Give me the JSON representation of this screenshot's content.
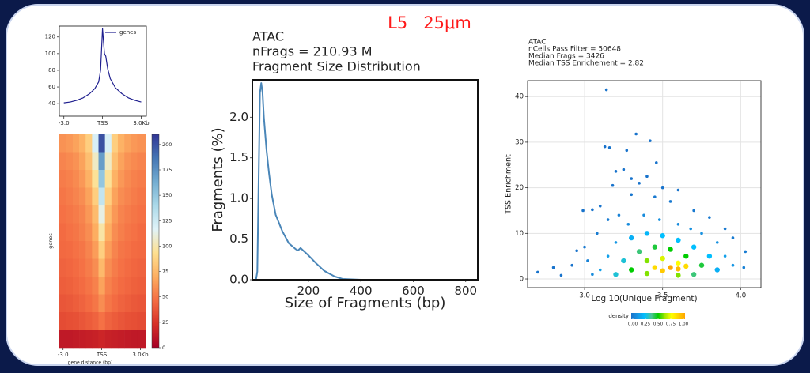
{
  "title": "L5   25μm",
  "chart_data": [
    {
      "type": "line",
      "series": [
        {
          "name": "genes",
          "color": "#1f1f8f",
          "x": [
            -3,
            -2.5,
            -2,
            -1.5,
            -1,
            -0.6,
            -0.3,
            -0.15,
            0,
            0.15,
            0.25,
            0.4,
            0.6,
            1,
            1.5,
            2,
            2.5,
            3
          ],
          "values": [
            41,
            42,
            44,
            47,
            52,
            58,
            66,
            80,
            130,
            100,
            97,
            82,
            70,
            59,
            52,
            47,
            44,
            42
          ]
        }
      ],
      "xlim": [
        -3.35,
        3.4
      ],
      "ylim": [
        25,
        133
      ],
      "xticks": [
        {
          "value": -3,
          "label": "-3.0"
        },
        {
          "value": 0,
          "label": "TSS"
        },
        {
          "value": 3,
          "label": "3.0Kb"
        }
      ],
      "yticks": [
        40,
        60,
        80,
        100,
        120
      ],
      "legend": "upper right"
    },
    {
      "type": "heatmap",
      "ylabel": "genes",
      "xlabel": "gene distance (bp)",
      "x": [
        -3,
        -2.5,
        -2,
        -1.5,
        -1,
        -0.5,
        0,
        0.5,
        1,
        1.5,
        2,
        2.5,
        3
      ],
      "z": [
        [
          60,
          62,
          66,
          72,
          85,
          120,
          200,
          120,
          85,
          72,
          66,
          62,
          60
        ],
        [
          55,
          57,
          60,
          66,
          78,
          105,
          170,
          105,
          78,
          66,
          60,
          57,
          55
        ],
        [
          52,
          54,
          57,
          62,
          72,
          95,
          150,
          95,
          72,
          62,
          57,
          54,
          52
        ],
        [
          50,
          52,
          55,
          58,
          66,
          85,
          130,
          85,
          66,
          58,
          55,
          52,
          50
        ],
        [
          48,
          50,
          52,
          55,
          62,
          76,
          112,
          76,
          62,
          55,
          52,
          50,
          48
        ],
        [
          46,
          48,
          50,
          53,
          58,
          70,
          98,
          70,
          58,
          53,
          50,
          48,
          46
        ],
        [
          45,
          46,
          48,
          50,
          55,
          64,
          85,
          64,
          55,
          50,
          48,
          46,
          45
        ],
        [
          43,
          44,
          46,
          48,
          52,
          58,
          75,
          58,
          52,
          48,
          46,
          44,
          43
        ],
        [
          41,
          42,
          44,
          46,
          49,
          54,
          66,
          54,
          49,
          46,
          44,
          42,
          41
        ],
        [
          38,
          39,
          41,
          43,
          46,
          50,
          58,
          50,
          46,
          43,
          41,
          39,
          38
        ],
        [
          34,
          35,
          36,
          38,
          40,
          43,
          48,
          43,
          40,
          38,
          36,
          35,
          34
        ],
        [
          12,
          12,
          13,
          14,
          15,
          16,
          18,
          16,
          15,
          14,
          13,
          12,
          12
        ]
      ],
      "xlim": [
        -3.35,
        3.4
      ],
      "xticks": [
        {
          "value": -3,
          "label": "-3.0"
        },
        {
          "value": 0,
          "label": "TSS"
        },
        {
          "value": 3,
          "label": "3.0Kb"
        }
      ],
      "colormap": [
        "#a50026",
        "#d73027",
        "#f46d43",
        "#fdae61",
        "#fee090",
        "#e0f3f8",
        "#abd9e9",
        "#74add1",
        "#4575b4",
        "#313695"
      ],
      "zlim": [
        0,
        210
      ],
      "zticks": [
        0,
        25,
        50,
        75,
        100,
        125,
        150,
        175,
        200
      ]
    },
    {
      "type": "line",
      "title": [
        "ATAC",
        "nFrags = 210.93 M",
        "Fragment Size Distribution"
      ],
      "xlabel": "Size of Fragments (bp)",
      "ylabel": "Fragments (%)",
      "color": "#4a86b8",
      "x": [
        0,
        5,
        10,
        15,
        20,
        25,
        30,
        40,
        50,
        60,
        75,
        100,
        125,
        150,
        160,
        170,
        180,
        200,
        230,
        260,
        300,
        330,
        400,
        600,
        840
      ],
      "values": [
        0,
        0.1,
        1.2,
        2.3,
        2.42,
        2.3,
        2.0,
        1.6,
        1.3,
        1.05,
        0.8,
        0.6,
        0.45,
        0.38,
        0.36,
        0.39,
        0.36,
        0.3,
        0.2,
        0.11,
        0.04,
        0.01,
        0,
        0,
        0
      ],
      "xlim": [
        -14,
        846
      ],
      "ylim": [
        0,
        2.46
      ],
      "xticks": [
        200,
        400,
        600,
        800
      ],
      "yticks": [
        {
          "value": 0,
          "label": "0.0"
        },
        0.5,
        {
          "value": 1,
          "label": "1.0"
        },
        1.5,
        {
          "value": 2,
          "label": "2.0"
        }
      ]
    },
    {
      "type": "scatter",
      "title": [
        "ATAC",
        "nCells Pass Filter = 50648",
        "Median Frags = 3426",
        "Median TSS Enrichement = 2.82"
      ],
      "xlabel": "Log 10(Unique Fragment)",
      "ylabel": "TSS Enrichment",
      "grid": true,
      "x": [
        3.14,
        3.13,
        3.16,
        3.27,
        3.33,
        3.42,
        3.46,
        3.2,
        3.25,
        3.3,
        3.4,
        3.18,
        3.35,
        3.5,
        3.6,
        3.45,
        3.55,
        3.3,
        3.05,
        2.99,
        3.1,
        3.7,
        3.8,
        3.9,
        3.95,
        4.03,
        4.02,
        2.7,
        2.8,
        2.85,
        2.92,
        2.95,
        3.0,
        3.02,
        3.08,
        3.15,
        3.22,
        3.28,
        3.38,
        3.48,
        3.6,
        3.68,
        3.75,
        3.85,
        3.9,
        3.95,
        3.05,
        3.1,
        3.15,
        3.2,
        3.3,
        3.4,
        3.5,
        3.6,
        3.7,
        3.8,
        3.85,
        3.2,
        3.25,
        3.35,
        3.45,
        3.55,
        3.65,
        3.75,
        3.7,
        3.3,
        3.4,
        3.5,
        3.6,
        3.45,
        3.55,
        3.6,
        3.5,
        3.4,
        3.6,
        3.65
      ],
      "values": [
        41.5,
        29,
        28.8,
        28.2,
        31.8,
        30.3,
        25.5,
        23.6,
        24,
        22,
        22.5,
        20.5,
        21,
        20,
        19.5,
        18,
        17,
        18.5,
        15.2,
        15,
        16,
        15,
        13.5,
        11,
        9,
        6,
        2.5,
        1.5,
        2.5,
        0.8,
        3,
        6.2,
        7,
        4,
        10,
        13,
        14,
        12,
        14,
        13,
        12,
        11,
        10,
        8,
        5,
        3,
        1,
        2,
        5,
        8,
        9,
        10,
        9.5,
        8.5,
        7,
        5,
        2,
        1,
        4,
        6,
        7,
        6.5,
        5,
        3,
        1,
        2,
        4,
        4.5,
        3.5,
        2.5,
        2.5,
        2.2,
        1.8,
        1.2,
        0.8,
        2.8
      ],
      "density": [
        0,
        0,
        0,
        0,
        0,
        0,
        0,
        0,
        0,
        0,
        0,
        0,
        0,
        0,
        0,
        0.02,
        0.02,
        0.01,
        0,
        0,
        0,
        0.02,
        0.02,
        0.02,
        0.03,
        0.03,
        0.05,
        0,
        0,
        0,
        0,
        0,
        0.02,
        0.05,
        0.03,
        0.03,
        0.05,
        0.08,
        0.08,
        0.1,
        0.08,
        0.1,
        0.1,
        0.1,
        0.15,
        0.12,
        0.08,
        0.15,
        0.15,
        0.12,
        0.2,
        0.22,
        0.25,
        0.25,
        0.25,
        0.25,
        0.2,
        0.3,
        0.3,
        0.4,
        0.45,
        0.5,
        0.5,
        0.45,
        0.4,
        0.5,
        0.6,
        0.7,
        0.75,
        0.85,
        1.0,
        0.95,
        0.9,
        0.6,
        0.6,
        0.85
      ],
      "xlim": [
        2.635,
        4.13
      ],
      "ylim": [
        -1.9,
        43.5
      ],
      "xticks": [
        {
          "value": 3,
          "label": "3.0"
        },
        3.5,
        {
          "value": 4,
          "label": "4.0"
        }
      ],
      "yticks": [
        0,
        10,
        20,
        30,
        40
      ],
      "legend_title": "density",
      "colormap": [
        "#1873CC",
        "#1798E5",
        "#00BFFF",
        "#4AC596",
        "#00CC00",
        "#A2E700",
        "#FFFF00",
        "#FFD200",
        "#FFA500"
      ],
      "zlim": [
        0,
        1
      ],
      "zticks": [
        {
          "value": 0,
          "label": "0.00"
        },
        {
          "value": 0.25,
          "label": "0.25"
        },
        {
          "value": 0.5,
          "label": "0.50"
        },
        {
          "value": 0.75,
          "label": "0.75"
        },
        {
          "value": 1,
          "label": "1.00"
        }
      ]
    }
  ]
}
